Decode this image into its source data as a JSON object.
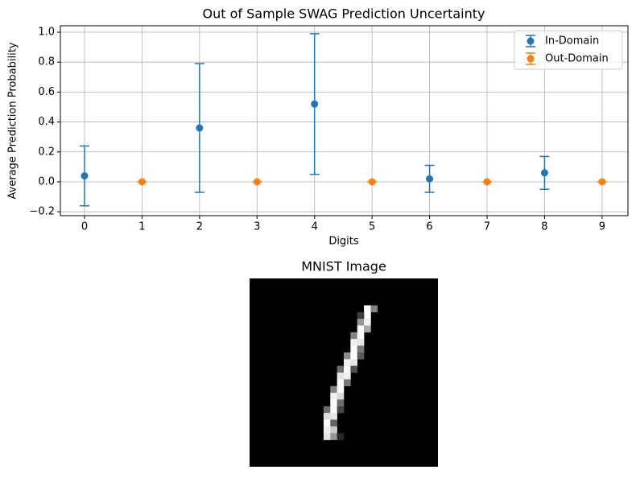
{
  "chart_data": [
    {
      "type": "errorbar",
      "title": "Out of Sample SWAG Prediction Uncertainty",
      "xlabel": "Digits",
      "ylabel": "Average Prediction Probability",
      "xlim": [
        -0.42,
        9.45
      ],
      "ylim": [
        -0.226,
        1.043
      ],
      "xticks": [
        0,
        1,
        2,
        3,
        4,
        5,
        6,
        7,
        8,
        9
      ],
      "yticks": [
        {
          "value": -0.2,
          "label": "−0.2"
        },
        {
          "value": 0,
          "label": "0.0"
        },
        {
          "value": 0.2,
          "label": "0.2"
        },
        {
          "value": 0.4,
          "label": "0.4"
        },
        {
          "value": 0.6,
          "label": "0.6"
        },
        {
          "value": 0.8,
          "label": "0.8"
        },
        {
          "value": 1,
          "label": "1.0"
        }
      ],
      "grid": true,
      "legend": "upper right",
      "series": [
        {
          "name": "In-Domain",
          "color": "#1f77b4",
          "x": [
            0,
            2,
            4,
            6,
            8
          ],
          "values": [
            0.04,
            0.36,
            0.52,
            0.02,
            0.06
          ],
          "errors": [
            0.2,
            0.43,
            0.47,
            0.09,
            0.11
          ]
        },
        {
          "name": "Out-Domain",
          "color": "#ff7f0e",
          "x": [
            1,
            3,
            5,
            7,
            9
          ],
          "values": [
            0,
            0,
            0,
            0,
            0
          ],
          "errors": [
            0,
            0,
            0,
            0,
            0
          ]
        }
      ]
    },
    {
      "type": "image",
      "title": "MNIST Image"
    }
  ]
}
